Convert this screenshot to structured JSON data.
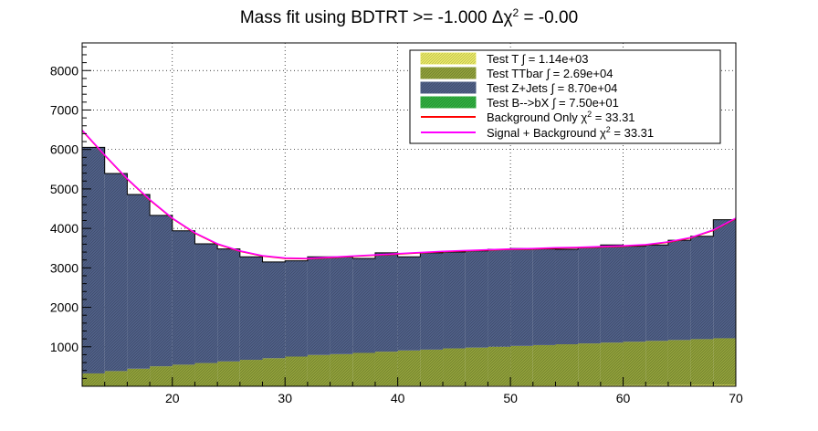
{
  "chart_data": {
    "type": "bar",
    "title_main": "Mass fit using BDTRT >= -1.000 Δχ",
    "title_sup": "2",
    "title_tail": " = -0.00",
    "xlim": [
      12,
      70
    ],
    "ylim": [
      0,
      8700
    ],
    "bin_edges": [
      12,
      14,
      16,
      18,
      20,
      22,
      24,
      26,
      28,
      30,
      32,
      34,
      36,
      38,
      40,
      42,
      44,
      46,
      48,
      50,
      52,
      54,
      56,
      58,
      60,
      62,
      64,
      66,
      68,
      70
    ],
    "xticks": [
      20,
      30,
      40,
      50,
      60,
      70
    ],
    "yticks": [
      1000,
      2000,
      3000,
      4000,
      5000,
      6000,
      7000,
      8000
    ],
    "grid": true,
    "legend_position": "top-right",
    "series": [
      {
        "name": "Test T ∫ = 1.14e+03",
        "kind": "stack",
        "fill": "#e8e866",
        "values": [
          5,
          5,
          5,
          6,
          7,
          8,
          9,
          10,
          11,
          12,
          13,
          14,
          15,
          16,
          17,
          18,
          19,
          20,
          21,
          22,
          23,
          24,
          25,
          26,
          28,
          30,
          32,
          34,
          36
        ]
      },
      {
        "name": "Test TTbar ∫ = 2.69e+04",
        "kind": "stack",
        "fill": "#8f9f3a",
        "values": [
          320,
          380,
          440,
          500,
          540,
          580,
          620,
          660,
          700,
          740,
          780,
          800,
          830,
          860,
          890,
          910,
          940,
          960,
          980,
          1000,
          1020,
          1040,
          1060,
          1080,
          1100,
          1120,
          1140,
          1160,
          1180
        ]
      },
      {
        "name": "Test Z+Jets ∫ = 8.70e+04",
        "kind": "stack",
        "fill": "#4f5f86",
        "values": [
          5730,
          5005,
          4415,
          3824,
          3393,
          3022,
          2851,
          2610,
          2439,
          2428,
          2487,
          2466,
          2395,
          2504,
          2373,
          2452,
          2441,
          2450,
          2469,
          2468,
          2437,
          2406,
          2435,
          2474,
          2422,
          2430,
          2528,
          2606,
          3004
        ]
      },
      {
        "name": "Test B-->bX ∫ = 7.50e+01",
        "kind": "stack",
        "fill": "#2fae3f",
        "values": [
          0,
          0,
          0,
          0,
          0,
          0,
          0,
          0,
          0,
          0,
          0,
          0,
          0,
          0,
          0,
          0,
          0,
          0,
          0,
          0,
          0,
          0,
          0,
          0,
          0,
          0,
          0,
          0,
          0
        ]
      },
      {
        "name_main": "Background Only χ",
        "name_sup": "2",
        "name_tail": " = 33.31",
        "kind": "line",
        "color": "#ff0000",
        "x": [
          12,
          14,
          16,
          18,
          20,
          22,
          24,
          26,
          28,
          30,
          32,
          34,
          36,
          38,
          40,
          42,
          44,
          46,
          48,
          50,
          52,
          54,
          56,
          58,
          60,
          62,
          64,
          66,
          68,
          70
        ],
        "y": [
          6480,
          5850,
          5250,
          4720,
          4250,
          3880,
          3600,
          3420,
          3300,
          3240,
          3230,
          3260,
          3290,
          3320,
          3350,
          3380,
          3410,
          3430,
          3450,
          3470,
          3480,
          3500,
          3510,
          3530,
          3550,
          3580,
          3650,
          3760,
          3950,
          4250
        ]
      },
      {
        "name_main": "Signal + Background χ",
        "name_sup": "2",
        "name_tail": " = 33.31",
        "kind": "line",
        "color": "#ff00ff",
        "x": [
          12,
          14,
          16,
          18,
          20,
          22,
          24,
          26,
          28,
          30,
          32,
          34,
          36,
          38,
          40,
          42,
          44,
          46,
          48,
          50,
          52,
          54,
          56,
          58,
          60,
          62,
          64,
          66,
          68,
          70
        ],
        "y": [
          6490,
          5860,
          5260,
          4730,
          4260,
          3890,
          3610,
          3430,
          3310,
          3250,
          3240,
          3270,
          3300,
          3330,
          3360,
          3390,
          3420,
          3440,
          3460,
          3480,
          3490,
          3510,
          3520,
          3540,
          3560,
          3590,
          3660,
          3770,
          3960,
          4260
        ]
      }
    ]
  }
}
